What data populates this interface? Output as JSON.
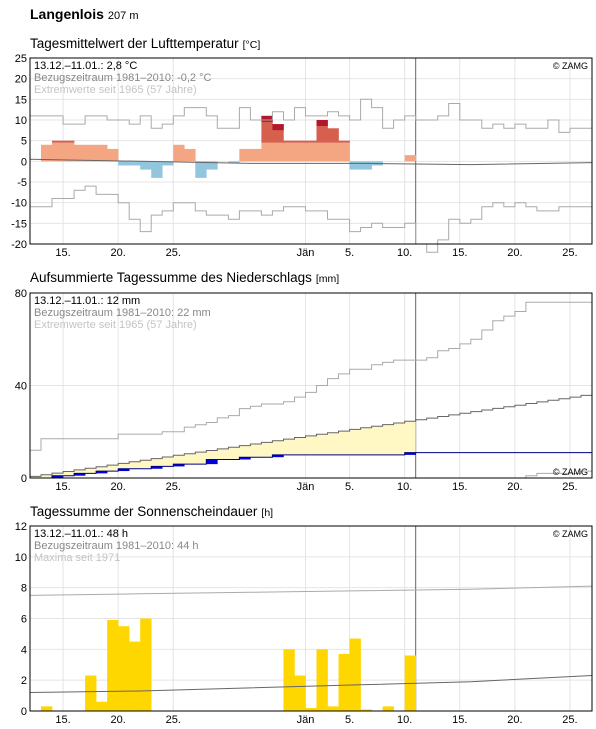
{
  "header": {
    "station": "Langenlois",
    "elevation": "207 m"
  },
  "x_axis": {
    "tick_labels": [
      {
        "day": 3,
        "label": "15."
      },
      {
        "day": 8,
        "label": "20."
      },
      {
        "day": 13,
        "label": "25."
      },
      {
        "day": 25,
        "label": "Jän"
      },
      {
        "day": 29,
        "label": "5."
      },
      {
        "day": 34,
        "label": "10."
      },
      {
        "day": 39,
        "label": "15."
      },
      {
        "day": 44,
        "label": "20."
      },
      {
        "day": 49,
        "label": "25."
      }
    ],
    "today_day": 35,
    "day_range": [
      0,
      51
    ]
  },
  "chart_data": [
    {
      "type": "bar",
      "title": "Tagesmittelwert der Lufttemperatur",
      "unit": "°C",
      "ylim": [
        -20,
        25
      ],
      "yticks": [
        -20,
        -15,
        -10,
        -5,
        0,
        5,
        10,
        15,
        20,
        25
      ],
      "grid": true,
      "info": {
        "line1": "13.12.–11.01.: 2,8 °C",
        "line2": "Bezugszeitraum 1981–2010: -0,2 °C",
        "line3": "Extremwerte seit 1965 (57 Jahre)",
        "credit": "© ZAMG"
      },
      "series": [
        {
          "name": "Tagesmittel",
          "x": [
            1,
            2,
            3,
            4,
            5,
            6,
            7,
            8,
            9,
            10,
            11,
            12,
            13,
            14,
            15,
            16,
            17,
            18,
            19,
            20,
            21,
            22,
            23,
            24,
            25,
            26,
            27,
            28,
            29,
            30,
            31,
            32,
            33,
            34
          ],
          "values": [
            4,
            5,
            5,
            4,
            4,
            4,
            3,
            -1,
            -1,
            -2,
            -4,
            -1,
            4,
            3,
            -4,
            -2,
            0,
            -0.5,
            3,
            3,
            11,
            9,
            5,
            5,
            5,
            10,
            8,
            5,
            -2,
            -2,
            -1,
            0,
            0,
            1.5
          ],
          "normals": [
            0,
            0,
            0,
            0,
            0,
            0,
            0,
            0,
            0,
            0,
            0,
            0,
            0,
            0,
            0,
            0,
            0,
            0,
            0,
            0,
            0,
            0,
            0,
            0,
            0,
            0,
            0,
            0,
            0,
            0,
            0,
            0,
            0,
            0
          ],
          "records": [
            0,
            0,
            0,
            0,
            0,
            0,
            0,
            0,
            0,
            0,
            0,
            0,
            0,
            0,
            0,
            0,
            0,
            0,
            0,
            0,
            0,
            0,
            0,
            0,
            0,
            0,
            0,
            0,
            0,
            0,
            0,
            0,
            0,
            0
          ]
        },
        {
          "name": "Tageshöchstwert",
          "x": [
            0,
            3,
            5,
            7,
            8,
            9,
            10,
            11,
            12,
            13,
            14,
            16,
            17,
            18,
            19,
            20,
            21,
            22,
            23,
            24,
            25,
            26,
            27,
            28,
            29,
            30,
            31,
            32,
            33,
            34,
            35,
            36,
            37,
            38,
            39,
            40,
            41,
            42,
            43,
            44,
            45,
            46,
            47,
            48,
            49,
            50,
            51
          ],
          "values": [
            11,
            9,
            11,
            10,
            10,
            9,
            11,
            8,
            9,
            11,
            13,
            11,
            8,
            8,
            13,
            10,
            10,
            12,
            10,
            13,
            11,
            11,
            12,
            11,
            10,
            15,
            13,
            8,
            10,
            11,
            10,
            10,
            11,
            14,
            10,
            10,
            8,
            9,
            8,
            9,
            8,
            8,
            10,
            7,
            8,
            8,
            9
          ]
        },
        {
          "name": "Normal",
          "x": [
            0,
            10,
            20,
            30,
            40,
            51
          ],
          "values": [
            0.5,
            0,
            -0.5,
            -0.5,
            -0.8,
            -0.3
          ]
        },
        {
          "name": "Tagestiefstwert",
          "x": [
            0,
            1,
            2,
            3,
            4,
            5,
            6,
            7,
            8,
            9,
            10,
            11,
            12,
            13,
            14,
            15,
            16,
            17,
            18,
            19,
            20,
            21,
            22,
            23,
            24,
            25,
            26,
            27,
            28,
            29,
            30,
            31,
            32,
            33,
            34,
            35,
            36,
            37,
            38,
            39,
            40,
            41,
            42,
            43,
            44,
            45,
            46,
            47,
            48,
            49,
            50,
            51
          ],
          "values": [
            -11,
            -11,
            -9,
            -9,
            -7,
            -6,
            -8,
            -8,
            -10,
            -14,
            -17,
            -13,
            -12,
            -10,
            -10,
            -12,
            -13,
            -13,
            -14,
            -12,
            -12,
            -13,
            -12,
            -11,
            -11,
            -12,
            -12,
            -14,
            -14,
            -17,
            -16,
            -15,
            -16,
            -16,
            -15,
            -20,
            -22,
            -19,
            -14,
            -15,
            -14,
            -11,
            -10,
            -11,
            -10,
            -11,
            -12,
            -12,
            -11,
            -11,
            -11,
            -11
          ]
        }
      ]
    },
    {
      "type": "area",
      "title": "Aufsummierte Tagessumme des Niederschlags",
      "unit": "mm",
      "ylim": [
        0,
        80
      ],
      "yticks": [
        0,
        40,
        80
      ],
      "grid": true,
      "info": {
        "line1": "13.12.–11.01.: 12 mm",
        "line2": "Bezugszeitraum 1981–2010: 22 mm",
        "line3": "Extremwerte seit 1965 (57 Jahre)",
        "credit": "© ZAMG"
      },
      "series": [
        {
          "name": "Aufsummiert",
          "x": [
            0,
            1,
            2,
            3,
            4,
            5,
            6,
            7,
            8,
            9,
            10,
            11,
            12,
            13,
            14,
            15,
            16,
            17,
            18,
            19,
            20,
            21,
            22,
            23,
            24,
            25,
            26,
            27,
            28,
            29,
            30,
            31,
            32,
            33,
            34,
            35
          ],
          "values": [
            0,
            0,
            1,
            1,
            2,
            2,
            3,
            3,
            4,
            4,
            4,
            5,
            5,
            6,
            6,
            6,
            8,
            8,
            8,
            9,
            9,
            9,
            10,
            10,
            10,
            10,
            10,
            10,
            10,
            10,
            10,
            10,
            10,
            10,
            11,
            11
          ]
        },
        {
          "name": "Normal",
          "x": [
            0,
            1,
            2,
            3,
            4,
            5,
            6,
            7,
            8,
            9,
            10,
            11,
            12,
            13,
            14,
            15,
            16,
            17,
            18,
            19,
            20,
            21,
            22,
            23,
            24,
            25,
            26,
            27,
            28,
            29,
            30,
            31,
            32,
            33,
            34,
            35,
            36,
            37,
            38,
            39,
            40,
            41,
            42,
            43,
            44,
            45,
            46,
            47,
            48,
            49,
            50,
            51
          ],
          "values": [
            0.7,
            1.4,
            2.1,
            2.8,
            3.5,
            4.2,
            4.9,
            5.6,
            6.3,
            7,
            7.7,
            8.4,
            9.1,
            9.8,
            10.5,
            11.2,
            11.9,
            12.6,
            13.3,
            14,
            14.7,
            15.4,
            16.1,
            16.8,
            17.5,
            18.2,
            18.9,
            19.6,
            20.3,
            21,
            21.7,
            22.4,
            23.1,
            23.8,
            24.5,
            25.2,
            25.9,
            26.6,
            27.3,
            28,
            28.7,
            29.4,
            30.1,
            30.8,
            31.5,
            32.2,
            32.9,
            33.6,
            34.3,
            35,
            35.7,
            36.4
          ]
        },
        {
          "name": "Maximum",
          "x": [
            0,
            1,
            2,
            3,
            4,
            5,
            6,
            7,
            8,
            9,
            10,
            11,
            12,
            13,
            14,
            15,
            16,
            17,
            18,
            19,
            20,
            21,
            22,
            23,
            24,
            25,
            26,
            27,
            28,
            29,
            30,
            31,
            32,
            33,
            34,
            35,
            36,
            37,
            38,
            39,
            40,
            41,
            42,
            43,
            44,
            45,
            46,
            47,
            48,
            49,
            50,
            51
          ],
          "values": [
            12,
            17,
            17,
            17,
            17,
            17,
            17,
            17,
            19,
            19,
            19,
            19,
            20,
            20,
            22,
            23,
            24,
            26,
            27,
            30,
            31,
            32,
            32,
            33,
            35,
            37,
            40,
            43,
            45,
            47,
            47,
            49,
            50,
            51,
            51,
            51,
            52,
            55,
            56,
            58,
            60,
            64,
            68,
            70,
            72,
            76,
            76,
            76,
            76,
            76,
            76,
            76
          ]
        },
        {
          "name": "Minimum",
          "x": [
            0,
            39,
            40,
            41,
            42,
            43,
            44,
            45,
            46,
            47,
            48,
            49,
            50,
            51
          ],
          "values": [
            0,
            0,
            0,
            0,
            0,
            0,
            0,
            1,
            2,
            2,
            2,
            2,
            3,
            3
          ]
        }
      ]
    },
    {
      "type": "bar",
      "title": "Tagessumme der Sonnenscheindauer",
      "unit": "h",
      "ylim": [
        0,
        12
      ],
      "yticks": [
        0,
        2,
        4,
        6,
        8,
        10,
        12
      ],
      "grid": true,
      "info": {
        "line1": "13.12.–11.01.: 48 h",
        "line2": "Bezugszeitraum 1981–2010: 44 h",
        "line3": "Maxima seit 1971",
        "credit": "© ZAMG"
      },
      "series": [
        {
          "name": "Sonnenscheindauer",
          "x": [
            1,
            2,
            3,
            4,
            5,
            6,
            7,
            8,
            9,
            10,
            11,
            12,
            13,
            14,
            15,
            16,
            17,
            18,
            19,
            20,
            21,
            22,
            23,
            24,
            25,
            26,
            27,
            28,
            29,
            30,
            31,
            32,
            33,
            34
          ],
          "values": [
            0.3,
            0,
            0,
            0,
            2.3,
            0.6,
            5.9,
            5.5,
            4.5,
            6.0,
            0,
            0,
            0,
            0,
            0,
            0,
            0,
            0,
            0,
            0,
            0,
            0,
            4.0,
            2.3,
            0.2,
            4.0,
            0.3,
            3.7,
            4.7,
            0.1,
            0,
            0.3,
            0,
            3.6
          ]
        },
        {
          "name": "Normal",
          "x": [
            0,
            10,
            20,
            30,
            40,
            51
          ],
          "values": [
            1.2,
            1.3,
            1.5,
            1.7,
            1.9,
            2.3
          ]
        },
        {
          "name": "Maxima",
          "x": [
            0,
            10,
            20,
            30,
            40,
            51
          ],
          "values": [
            7.5,
            7.6,
            7.7,
            7.8,
            7.9,
            8.1
          ]
        }
      ]
    }
  ],
  "colors": {
    "temp_above_normal": "#f4a582",
    "temp_well_above": "#d6604d",
    "temp_record_high": "#b2182b",
    "temp_below_normal": "#92c5de",
    "precip_fill": "#fff8c4",
    "precip_bar": "#0000e0",
    "sun_bar": "#ffd700",
    "grid": "#e4e4e4",
    "today_line": "#666666",
    "envelope_line": "#aaaaaa",
    "normal_line": "#666666"
  }
}
